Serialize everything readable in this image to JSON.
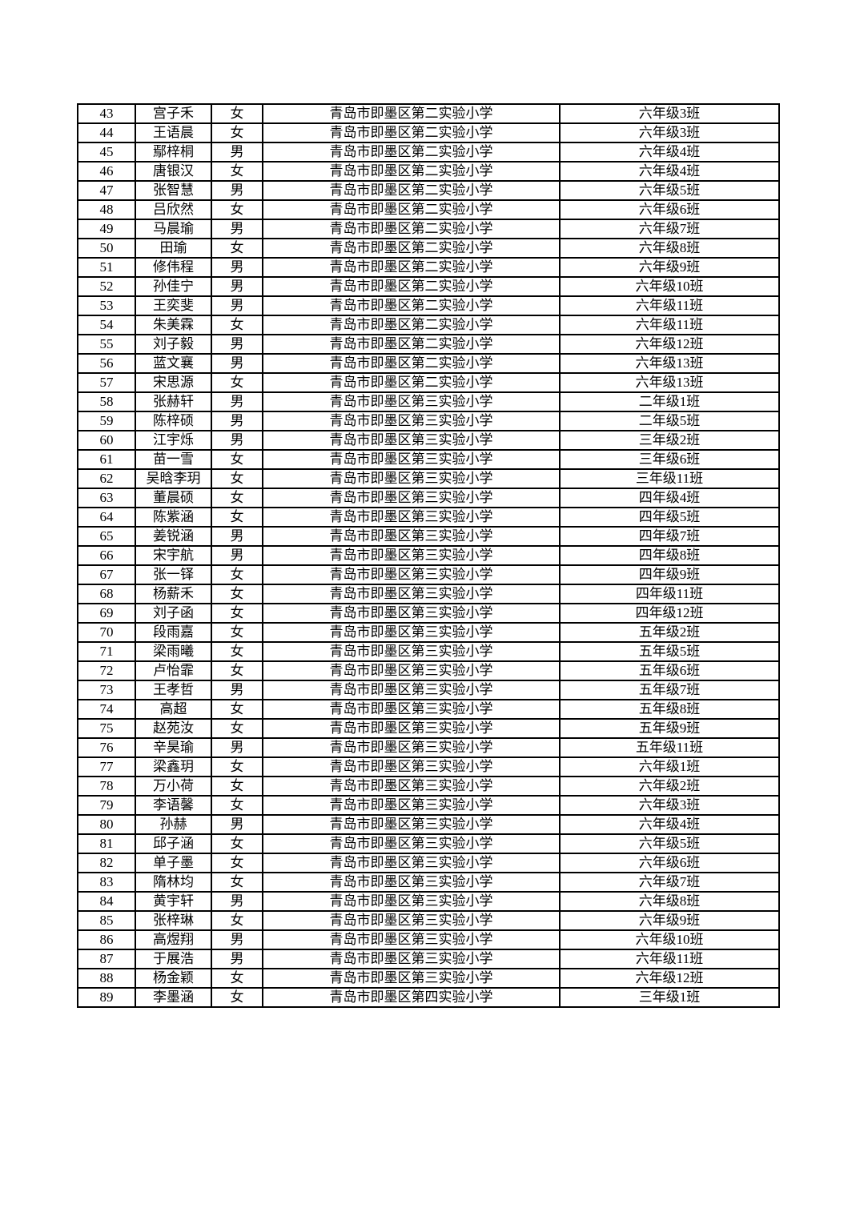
{
  "page": {
    "background_color": "#ffffff",
    "border_color": "#000000",
    "text_color": "#000000"
  },
  "table": {
    "rows": [
      {
        "no": "43",
        "name": "宫子禾",
        "gender": "女",
        "school": "青岛市即墨区第二实验小学",
        "class_name": "六年级3班"
      },
      {
        "no": "44",
        "name": "王语晨",
        "gender": "女",
        "school": "青岛市即墨区第二实验小学",
        "class_name": "六年级3班"
      },
      {
        "no": "45",
        "name": "鄢梓桐",
        "gender": "男",
        "school": "青岛市即墨区第二实验小学",
        "class_name": "六年级4班"
      },
      {
        "no": "46",
        "name": "唐银汉",
        "gender": "女",
        "school": "青岛市即墨区第二实验小学",
        "class_name": "六年级4班"
      },
      {
        "no": "47",
        "name": "张智慧",
        "gender": "男",
        "school": "青岛市即墨区第二实验小学",
        "class_name": "六年级5班"
      },
      {
        "no": "48",
        "name": "吕欣然",
        "gender": "女",
        "school": "青岛市即墨区第二实验小学",
        "class_name": "六年级6班"
      },
      {
        "no": "49",
        "name": "马晨瑜",
        "gender": "男",
        "school": "青岛市即墨区第二实验小学",
        "class_name": "六年级7班"
      },
      {
        "no": "50",
        "name": "田瑜",
        "gender": "女",
        "school": "青岛市即墨区第二实验小学",
        "class_name": "六年级8班"
      },
      {
        "no": "51",
        "name": "修伟程",
        "gender": "男",
        "school": "青岛市即墨区第二实验小学",
        "class_name": "六年级9班"
      },
      {
        "no": "52",
        "name": "孙佳宁",
        "gender": "男",
        "school": "青岛市即墨区第二实验小学",
        "class_name": "六年级10班"
      },
      {
        "no": "53",
        "name": "王奕斐",
        "gender": "男",
        "school": "青岛市即墨区第二实验小学",
        "class_name": "六年级11班"
      },
      {
        "no": "54",
        "name": "朱美霖",
        "gender": "女",
        "school": "青岛市即墨区第二实验小学",
        "class_name": "六年级11班"
      },
      {
        "no": "55",
        "name": "刘子毅",
        "gender": "男",
        "school": "青岛市即墨区第二实验小学",
        "class_name": "六年级12班"
      },
      {
        "no": "56",
        "name": "蓝文襄",
        "gender": "男",
        "school": "青岛市即墨区第二实验小学",
        "class_name": "六年级13班"
      },
      {
        "no": "57",
        "name": "宋思源",
        "gender": "女",
        "school": "青岛市即墨区第二实验小学",
        "class_name": "六年级13班"
      },
      {
        "no": "58",
        "name": "张赫轩",
        "gender": "男",
        "school": "青岛市即墨区第三实验小学",
        "class_name": "二年级1班"
      },
      {
        "no": "59",
        "name": "陈梓硕",
        "gender": "男",
        "school": "青岛市即墨区第三实验小学",
        "class_name": "二年级5班"
      },
      {
        "no": "60",
        "name": "江宇烁",
        "gender": "男",
        "school": "青岛市即墨区第三实验小学",
        "class_name": "三年级2班"
      },
      {
        "no": "61",
        "name": "苗一雪",
        "gender": "女",
        "school": "青岛市即墨区第三实验小学",
        "class_name": "三年级6班"
      },
      {
        "no": "62",
        "name": "吴晗李玥",
        "gender": "女",
        "school": "青岛市即墨区第三实验小学",
        "class_name": "三年级11班"
      },
      {
        "no": "63",
        "name": "董晨硕",
        "gender": "女",
        "school": "青岛市即墨区第三实验小学",
        "class_name": "四年级4班"
      },
      {
        "no": "64",
        "name": "陈紫涵",
        "gender": "女",
        "school": "青岛市即墨区第三实验小学",
        "class_name": "四年级5班"
      },
      {
        "no": "65",
        "name": "姜锐涵",
        "gender": "男",
        "school": "青岛市即墨区第三实验小学",
        "class_name": "四年级7班"
      },
      {
        "no": "66",
        "name": "宋宇航",
        "gender": "男",
        "school": "青岛市即墨区第三实验小学",
        "class_name": "四年级8班"
      },
      {
        "no": "67",
        "name": "张一铎",
        "gender": "女",
        "school": "青岛市即墨区第三实验小学",
        "class_name": "四年级9班"
      },
      {
        "no": "68",
        "name": "杨薪禾",
        "gender": "女",
        "school": "青岛市即墨区第三实验小学",
        "class_name": "四年级11班"
      },
      {
        "no": "69",
        "name": "刘子函",
        "gender": "女",
        "school": "青岛市即墨区第三实验小学",
        "class_name": "四年级12班"
      },
      {
        "no": "70",
        "name": "段雨嘉",
        "gender": "女",
        "school": "青岛市即墨区第三实验小学",
        "class_name": "五年级2班"
      },
      {
        "no": "71",
        "name": "梁雨曦",
        "gender": "女",
        "school": "青岛市即墨区第三实验小学",
        "class_name": "五年级5班"
      },
      {
        "no": "72",
        "name": "卢怡霏",
        "gender": "女",
        "school": "青岛市即墨区第三实验小学",
        "class_name": "五年级6班"
      },
      {
        "no": "73",
        "name": "王孝哲",
        "gender": "男",
        "school": "青岛市即墨区第三实验小学",
        "class_name": "五年级7班"
      },
      {
        "no": "74",
        "name": "高超",
        "gender": "女",
        "school": "青岛市即墨区第三实验小学",
        "class_name": "五年级8班"
      },
      {
        "no": "75",
        "name": "赵苑汝",
        "gender": "女",
        "school": "青岛市即墨区第三实验小学",
        "class_name": "五年级9班"
      },
      {
        "no": "76",
        "name": "辛昊瑜",
        "gender": "男",
        "school": "青岛市即墨区第三实验小学",
        "class_name": "五年级11班"
      },
      {
        "no": "77",
        "name": "梁鑫玥",
        "gender": "女",
        "school": "青岛市即墨区第三实验小学",
        "class_name": "六年级1班"
      },
      {
        "no": "78",
        "name": "万小荷",
        "gender": "女",
        "school": "青岛市即墨区第三实验小学",
        "class_name": "六年级2班"
      },
      {
        "no": "79",
        "name": "李语馨",
        "gender": "女",
        "school": "青岛市即墨区第三实验小学",
        "class_name": "六年级3班"
      },
      {
        "no": "80",
        "name": "孙赫",
        "gender": "男",
        "school": "青岛市即墨区第三实验小学",
        "class_name": "六年级4班"
      },
      {
        "no": "81",
        "name": "邱子涵",
        "gender": "女",
        "school": "青岛市即墨区第三实验小学",
        "class_name": "六年级5班"
      },
      {
        "no": "82",
        "name": "单子墨",
        "gender": "女",
        "school": "青岛市即墨区第三实验小学",
        "class_name": "六年级6班"
      },
      {
        "no": "83",
        "name": "隋林均",
        "gender": "女",
        "school": "青岛市即墨区第三实验小学",
        "class_name": "六年级7班"
      },
      {
        "no": "84",
        "name": "黄宇轩",
        "gender": "男",
        "school": "青岛市即墨区第三实验小学",
        "class_name": "六年级8班"
      },
      {
        "no": "85",
        "name": "张梓琳",
        "gender": "女",
        "school": "青岛市即墨区第三实验小学",
        "class_name": "六年级9班"
      },
      {
        "no": "86",
        "name": "高煜翔",
        "gender": "男",
        "school": "青岛市即墨区第三实验小学",
        "class_name": "六年级10班"
      },
      {
        "no": "87",
        "name": "于展浩",
        "gender": "男",
        "school": "青岛市即墨区第三实验小学",
        "class_name": "六年级11班"
      },
      {
        "no": "88",
        "name": "杨金颖",
        "gender": "女",
        "school": "青岛市即墨区第三实验小学",
        "class_name": "六年级12班"
      },
      {
        "no": "89",
        "name": "李墨涵",
        "gender": "女",
        "school": "青岛市即墨区第四实验小学",
        "class_name": "三年级1班"
      }
    ]
  }
}
